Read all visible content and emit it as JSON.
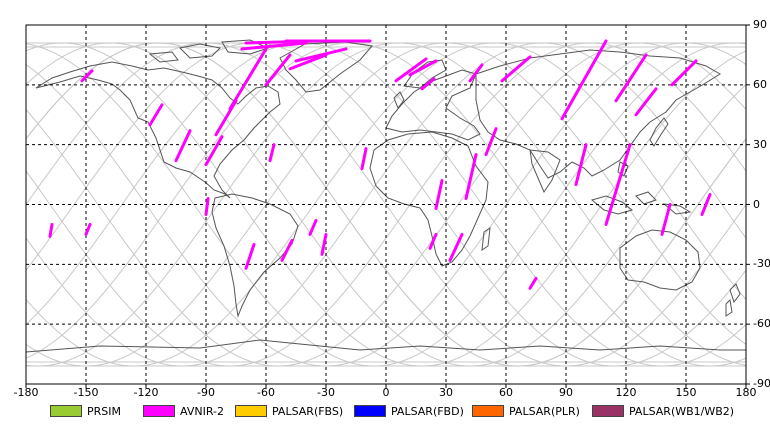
{
  "map": {
    "lon_range": [
      -180,
      180
    ],
    "lat_range": [
      -90,
      90
    ],
    "grid": true,
    "x_ticks": [
      -180,
      -150,
      -120,
      -90,
      -60,
      -30,
      0,
      30,
      60,
      90,
      120,
      150,
      180
    ],
    "y_ticks": [
      90,
      60,
      30,
      0,
      -30,
      -60,
      -90
    ],
    "x_tick_labels": [
      "-180",
      "-150",
      "-120",
      "-90",
      "-60",
      "-30",
      "0",
      "30",
      "60",
      "90",
      "120",
      "150",
      "180"
    ],
    "y_tick_labels": [
      "90",
      "60",
      "30",
      "0",
      "-30",
      "-60",
      "-90"
    ],
    "orbit_track_color": "#c8c8c8",
    "coastline_color": "#555555",
    "observed_segments": {
      "sensor": "AVNIR-2",
      "color": "#ff00ff",
      "segments": [
        [
          [
            -70,
            81
          ],
          [
            -35,
            82
          ]
        ],
        [
          [
            -50,
            82
          ],
          [
            -8,
            82
          ]
        ],
        [
          [
            -72,
            78
          ],
          [
            -40,
            81
          ]
        ],
        [
          [
            -45,
            72
          ],
          [
            -20,
            78
          ]
        ],
        [
          [
            -48,
            68
          ],
          [
            -30,
            75
          ]
        ],
        [
          [
            -60,
            60
          ],
          [
            -48,
            75
          ]
        ],
        [
          [
            -78,
            48
          ],
          [
            -60,
            78
          ]
        ],
        [
          [
            -85,
            35
          ],
          [
            -75,
            52
          ]
        ],
        [
          [
            -90,
            20
          ],
          [
            -82,
            34
          ]
        ],
        [
          [
            -105,
            22
          ],
          [
            -98,
            37
          ]
        ],
        [
          [
            -152,
            62
          ],
          [
            -147,
            67
          ]
        ],
        [
          [
            -118,
            40
          ],
          [
            -112,
            50
          ]
        ],
        [
          [
            -58,
            22
          ],
          [
            -56,
            30
          ]
        ],
        [
          [
            -90,
            -5
          ],
          [
            -89,
            3
          ]
        ],
        [
          [
            -150,
            -15
          ],
          [
            -148,
            -10
          ]
        ],
        [
          [
            -168,
            -16
          ],
          [
            -167,
            -10
          ]
        ],
        [
          [
            -70,
            -32
          ],
          [
            -66,
            -20
          ]
        ],
        [
          [
            -52,
            -28
          ],
          [
            -47,
            -18
          ]
        ],
        [
          [
            -38,
            -15
          ],
          [
            -35,
            -8
          ]
        ],
        [
          [
            -32,
            -25
          ],
          [
            -30,
            -15
          ]
        ],
        [
          [
            -12,
            18
          ],
          [
            -10,
            28
          ]
        ],
        [
          [
            5,
            62
          ],
          [
            20,
            73
          ]
        ],
        [
          [
            12,
            65
          ],
          [
            25,
            72
          ]
        ],
        [
          [
            18,
            58
          ],
          [
            24,
            63
          ]
        ],
        [
          [
            22,
            -22
          ],
          [
            25,
            -15
          ]
        ],
        [
          [
            32,
            -28
          ],
          [
            38,
            -15
          ]
        ],
        [
          [
            40,
            3
          ],
          [
            45,
            25
          ]
        ],
        [
          [
            25,
            -2
          ],
          [
            28,
            12
          ]
        ],
        [
          [
            42,
            62
          ],
          [
            48,
            70
          ]
        ],
        [
          [
            58,
            62
          ],
          [
            72,
            74
          ]
        ],
        [
          [
            50,
            25
          ],
          [
            55,
            38
          ]
        ],
        [
          [
            88,
            43
          ],
          [
            110,
            82
          ]
        ],
        [
          [
            115,
            52
          ],
          [
            130,
            75
          ]
        ],
        [
          [
            143,
            60
          ],
          [
            155,
            72
          ]
        ],
        [
          [
            125,
            45
          ],
          [
            135,
            58
          ]
        ],
        [
          [
            110,
            -10
          ],
          [
            122,
            30
          ]
        ],
        [
          [
            138,
            -15
          ],
          [
            142,
            0
          ]
        ],
        [
          [
            158,
            -5
          ],
          [
            162,
            5
          ]
        ],
        [
          [
            72,
            -42
          ],
          [
            75,
            -37
          ]
        ],
        [
          [
            95,
            10
          ],
          [
            100,
            30
          ]
        ]
      ]
    }
  },
  "legend": [
    {
      "label": "PRSIM",
      "color": "#99cc33"
    },
    {
      "label": "AVNIR-2",
      "color": "#ff00ff"
    },
    {
      "label": "PALSAR(FBS)",
      "color": "#ffcc00"
    },
    {
      "label": "PALSAR(FBD)",
      "color": "#0000ff"
    },
    {
      "label": "PALSAR(PLR)",
      "color": "#ff6600"
    },
    {
      "label": "PALSAR(WB1/WB2)",
      "color": "#993366"
    }
  ]
}
